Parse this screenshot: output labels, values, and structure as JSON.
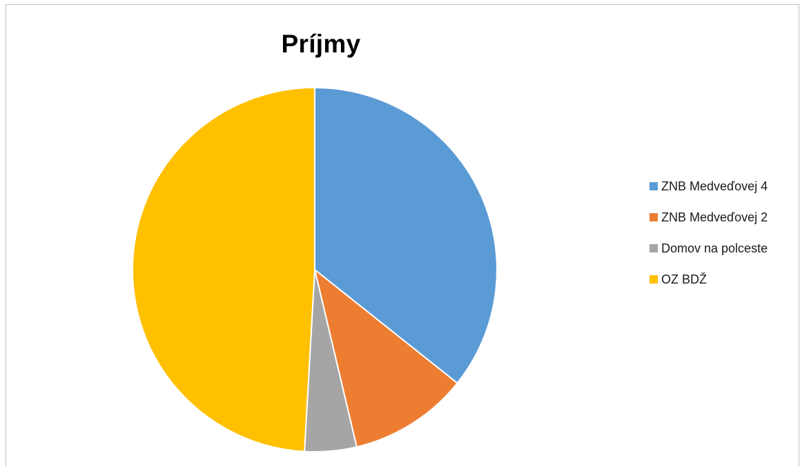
{
  "chart_data": {
    "type": "pie",
    "title": "Príjmy",
    "categories": [
      "ZNB Medveďovej 4",
      "ZNB Medveďovej 2",
      "Domov na polceste",
      "OZ BDŽ"
    ],
    "values": [
      35.7,
      10.6,
      4.6,
      49.1
    ],
    "colors": [
      "#5b9bd5",
      "#ed7d31",
      "#a5a5a5",
      "#ffc000"
    ],
    "legend_position": "right",
    "start_angle": "12 o'clock",
    "direction": "clockwise"
  }
}
